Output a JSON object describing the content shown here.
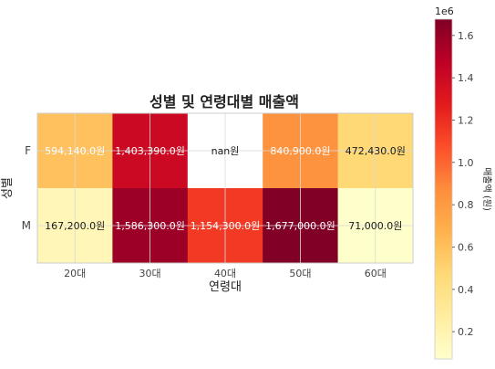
{
  "chart_data": {
    "type": "heatmap",
    "title": "성별 및 연령대별 매출액",
    "xlabel": "연령대",
    "ylabel": "성별",
    "x_categories": [
      "20대",
      "30대",
      "40대",
      "50대",
      "60대"
    ],
    "y_categories": [
      "F",
      "M"
    ],
    "values": [
      [
        594140,
        1403390,
        null,
        840900,
        472430
      ],
      [
        167200,
        1586300,
        1154300,
        1677000,
        71000
      ]
    ],
    "cell_labels": [
      [
        "594,140.0원",
        "1,403,390.0원",
        "nan원",
        "840,900.0원",
        "472,430.0원"
      ],
      [
        "167,200.0원",
        "1,586,300.0원",
        "1,154,300.0원",
        "1,677,000.0원",
        "71,000.0원"
      ]
    ],
    "grid": true,
    "colorscale": "YlOrRd",
    "colorbar": {
      "label": "매출액 (원)",
      "offset_text": "1e6",
      "range": [
        71000,
        1677000
      ],
      "ticks": [
        0.2,
        0.4,
        0.6,
        0.8,
        1.0,
        1.2,
        1.4,
        1.6
      ],
      "tick_labels": [
        "0.2",
        "0.4",
        "0.6",
        "0.8",
        "1.0",
        "1.2",
        "1.4",
        "1.6"
      ],
      "scale": 1000000
    }
  }
}
